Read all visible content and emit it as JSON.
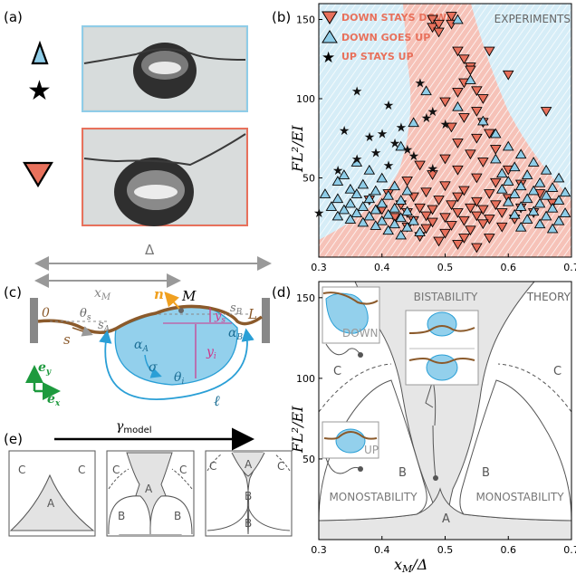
{
  "panel_labels": {
    "a": "(a)",
    "b": "(b)",
    "c": "(c)",
    "d": "(d)",
    "e": "(e)"
  },
  "colors": {
    "red": "#e8715c",
    "blue": "#8fcde8",
    "black": "#111111",
    "pink_bg": "#f7c6bd",
    "blue_bg": "#d6edf7",
    "gray_region": "#e6e6e6"
  },
  "panel_a": {
    "icons": [
      "blue-up-triangle",
      "black-star",
      "red-down-triangle"
    ]
  },
  "panel_b": {
    "title": "EXPERIMENTS",
    "legend": [
      "DOWN STAYS DOWN",
      "DOWN GOES UP",
      "UP STAYS UP"
    ],
    "ylabel": "FL²/EI",
    "xticks": [
      "0.3",
      "0.4",
      "0.5",
      "0.6",
      "0.7"
    ],
    "yticks": [
      "50",
      "100",
      "150"
    ]
  },
  "panel_c": {
    "delta": "Δ",
    "xM": "x",
    "xM_sub": "M",
    "labels": {
      "zero": "0",
      "L": "L",
      "s": "s",
      "M": "M",
      "n": "n",
      "theta_s": "θ",
      "sA": "s",
      "sB": "s",
      "ys": "y",
      "yi": "y",
      "alphaA": "α",
      "alphaB": "α",
      "sigma": "σ",
      "theta_i": "θ",
      "ell": "ℓ",
      "ey": "e",
      "ex": "e"
    }
  },
  "panel_d": {
    "title": "THEORY",
    "regions": {
      "bistability": "BISTABILITY",
      "mono_left": "MONOSTABILITY",
      "mono_right": "MONOSTABILITY",
      "A": "A",
      "B_left": "B",
      "B_right": "B",
      "C_left": "C",
      "C_right": "C"
    },
    "insets": {
      "down": "DOWN",
      "up": "UP"
    },
    "xlabel": "x_M/Δ",
    "ylabel": "FL²/EI",
    "xticks": [
      "0.3",
      "0.4",
      "0.5",
      "0.6",
      "0.7"
    ],
    "yticks": [
      "50",
      "100",
      "150"
    ]
  },
  "panel_e": {
    "arrow_label": "γ_model",
    "mini1": [
      "C",
      "C",
      "A"
    ],
    "mini2": [
      "C",
      "C",
      "A",
      "B",
      "B"
    ],
    "mini3": [
      "C",
      "C",
      "A",
      "B",
      "B"
    ]
  },
  "chart_data": [
    {
      "type": "scatter",
      "title": "EXPERIMENTS",
      "xlabel": "",
      "ylabel": "FL²/EI",
      "xlim": [
        0.3,
        0.7
      ],
      "ylim": [
        0,
        160
      ],
      "series": [
        {
          "name": "DOWN STAYS DOWN",
          "marker": "down-triangle",
          "color": "#e8715c",
          "points": [
            [
              0.48,
              150
            ],
            [
              0.48,
              145
            ],
            [
              0.49,
              147
            ],
            [
              0.49,
              142
            ],
            [
              0.51,
              152
            ],
            [
              0.51,
              147
            ],
            [
              0.52,
              130
            ],
            [
              0.53,
              125
            ],
            [
              0.54,
              120
            ],
            [
              0.54,
              118
            ],
            [
              0.53,
              110
            ],
            [
              0.55,
              105
            ],
            [
              0.52,
              104
            ],
            [
              0.56,
              100
            ],
            [
              0.5,
              98
            ],
            [
              0.55,
              92
            ],
            [
              0.53,
              88
            ],
            [
              0.56,
              85
            ],
            [
              0.51,
              82
            ],
            [
              0.57,
              78
            ],
            [
              0.55,
              75
            ],
            [
              0.52,
              72
            ],
            [
              0.58,
              68
            ],
            [
              0.54,
              65
            ],
            [
              0.5,
              62
            ],
            [
              0.56,
              60
            ],
            [
              0.46,
              58
            ],
            [
              0.52,
              55
            ],
            [
              0.6,
              55
            ],
            [
              0.48,
              52
            ],
            [
              0.55,
              50
            ],
            [
              0.44,
              48
            ],
            [
              0.58,
              47
            ],
            [
              0.62,
              46
            ],
            [
              0.5,
              45
            ],
            [
              0.53,
              42
            ],
            [
              0.47,
              41
            ],
            [
              0.41,
              40
            ],
            [
              0.57,
              40
            ],
            [
              0.65,
              40
            ],
            [
              0.45,
              38
            ],
            [
              0.52,
              38
            ],
            [
              0.6,
              37
            ],
            [
              0.38,
              36
            ],
            [
              0.49,
              36
            ],
            [
              0.55,
              35
            ],
            [
              0.67,
              34
            ],
            [
              0.43,
              33
            ],
            [
              0.51,
              33
            ],
            [
              0.58,
              33
            ],
            [
              0.46,
              31
            ],
            [
              0.54,
              31
            ],
            [
              0.62,
              31
            ],
            [
              0.4,
              30
            ],
            [
              0.48,
              30
            ],
            [
              0.56,
              30
            ],
            [
              0.44,
              28
            ],
            [
              0.52,
              28
            ],
            [
              0.59,
              28
            ],
            [
              0.64,
              28
            ],
            [
              0.47,
              26
            ],
            [
              0.55,
              26
            ],
            [
              0.42,
              25
            ],
            [
              0.5,
              25
            ],
            [
              0.57,
              24
            ],
            [
              0.61,
              24
            ],
            [
              0.45,
              23
            ],
            [
              0.53,
              23
            ],
            [
              0.48,
              22
            ],
            [
              0.56,
              21
            ],
            [
              0.51,
              20
            ],
            [
              0.44,
              19
            ],
            [
              0.59,
              19
            ],
            [
              0.47,
              18
            ],
            [
              0.54,
              17
            ],
            [
              0.5,
              15
            ],
            [
              0.46,
              13
            ],
            [
              0.53,
              12
            ],
            [
              0.57,
              12
            ],
            [
              0.49,
              10
            ],
            [
              0.52,
              8
            ],
            [
              0.55,
              6
            ],
            [
              0.66,
              92
            ],
            [
              0.6,
              115
            ],
            [
              0.57,
              130
            ]
          ]
        },
        {
          "name": "DOWN GOES UP",
          "marker": "up-triangle",
          "color": "#8fcde8",
          "points": [
            [
              0.52,
              150
            ],
            [
              0.45,
              85
            ],
            [
              0.43,
              70
            ],
            [
              0.36,
              60
            ],
            [
              0.38,
              55
            ],
            [
              0.34,
              52
            ],
            [
              0.4,
              50
            ],
            [
              0.33,
              48
            ],
            [
              0.37,
              46
            ],
            [
              0.42,
              45
            ],
            [
              0.35,
              43
            ],
            [
              0.39,
              42
            ],
            [
              0.44,
              42
            ],
            [
              0.31,
              40
            ],
            [
              0.36,
              40
            ],
            [
              0.41,
              39
            ],
            [
              0.33,
              37
            ],
            [
              0.38,
              37
            ],
            [
              0.43,
              36
            ],
            [
              0.35,
              34
            ],
            [
              0.4,
              34
            ],
            [
              0.32,
              32
            ],
            [
              0.37,
              32
            ],
            [
              0.42,
              31
            ],
            [
              0.34,
              30
            ],
            [
              0.39,
              30
            ],
            [
              0.44,
              29
            ],
            [
              0.36,
              28
            ],
            [
              0.41,
              27
            ],
            [
              0.33,
              26
            ],
            [
              0.38,
              26
            ],
            [
              0.43,
              25
            ],
            [
              0.35,
              24
            ],
            [
              0.4,
              23
            ],
            [
              0.45,
              23
            ],
            [
              0.37,
              22
            ],
            [
              0.42,
              21
            ],
            [
              0.39,
              20
            ],
            [
              0.44,
              19
            ],
            [
              0.41,
              17
            ],
            [
              0.46,
              16
            ],
            [
              0.43,
              14
            ],
            [
              0.6,
              70
            ],
            [
              0.62,
              65
            ],
            [
              0.58,
              62
            ],
            [
              0.64,
              60
            ],
            [
              0.61,
              57
            ],
            [
              0.66,
              55
            ],
            [
              0.59,
              53
            ],
            [
              0.63,
              52
            ],
            [
              0.68,
              50
            ],
            [
              0.6,
              48
            ],
            [
              0.65,
              47
            ],
            [
              0.62,
              45
            ],
            [
              0.67,
              44
            ],
            [
              0.59,
              43
            ],
            [
              0.64,
              42
            ],
            [
              0.69,
              41
            ],
            [
              0.61,
              40
            ],
            [
              0.66,
              39
            ],
            [
              0.63,
              37
            ],
            [
              0.68,
              36
            ],
            [
              0.6,
              35
            ],
            [
              0.65,
              34
            ],
            [
              0.62,
              32
            ],
            [
              0.67,
              31
            ],
            [
              0.64,
              29
            ],
            [
              0.69,
              28
            ],
            [
              0.61,
              27
            ],
            [
              0.66,
              26
            ],
            [
              0.63,
              24
            ],
            [
              0.68,
              23
            ],
            [
              0.65,
              21
            ],
            [
              0.62,
              19
            ],
            [
              0.67,
              18
            ],
            [
              0.56,
              86
            ],
            [
              0.58,
              78
            ],
            [
              0.52,
              95
            ],
            [
              0.54,
              112
            ],
            [
              0.47,
              105
            ]
          ]
        },
        {
          "name": "UP STAYS UP",
          "marker": "star",
          "color": "#111111",
          "points": [
            [
              0.36,
              105
            ],
            [
              0.41,
              96
            ],
            [
              0.46,
              110
            ],
            [
              0.48,
              92
            ],
            [
              0.34,
              80
            ],
            [
              0.38,
              76
            ],
            [
              0.42,
              72
            ],
            [
              0.44,
              68
            ],
            [
              0.39,
              66
            ],
            [
              0.45,
              64
            ],
            [
              0.36,
              62
            ],
            [
              0.41,
              58
            ],
            [
              0.48,
              56
            ],
            [
              0.33,
              55
            ],
            [
              0.3,
              28
            ],
            [
              0.47,
              88
            ],
            [
              0.5,
              84
            ],
            [
              0.43,
              82
            ],
            [
              0.4,
              78
            ]
          ]
        }
      ]
    },
    {
      "type": "area",
      "title": "THEORY",
      "xlabel": "x_M/Δ",
      "ylabel": "FL²/EI",
      "xlim": [
        0.3,
        0.7
      ],
      "ylim": [
        0,
        160
      ],
      "regions": [
        "A",
        "B",
        "C"
      ]
    }
  ]
}
